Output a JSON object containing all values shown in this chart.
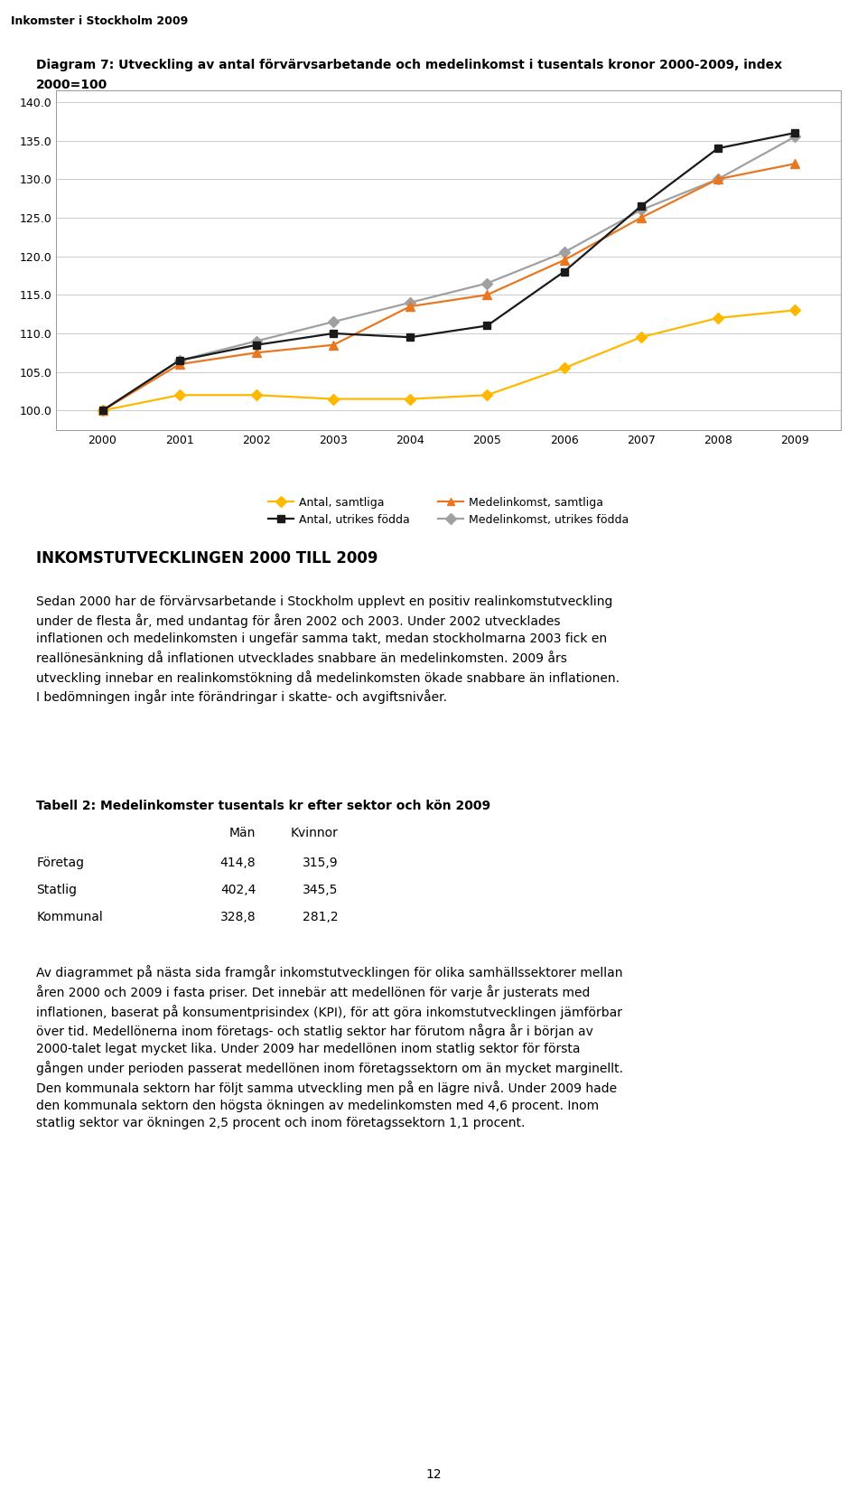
{
  "title_line1": "Diagram 7: Utveckling av antal förvärvsarbetande och medelinkomst i tusentals kronor 2000-2009, index",
  "title_line2": "2000=100",
  "header": "Inkomster i Stockholm 2009",
  "years": [
    2000,
    2001,
    2002,
    2003,
    2004,
    2005,
    2006,
    2007,
    2008,
    2009
  ],
  "antal_samtliga": [
    100.0,
    102.0,
    102.0,
    101.5,
    101.5,
    102.0,
    105.5,
    109.5,
    112.0,
    113.0
  ],
  "antal_utrikes_fodda": [
    100.0,
    106.5,
    108.5,
    110.0,
    109.5,
    111.0,
    118.0,
    126.5,
    134.0,
    136.0
  ],
  "medinkomst_samtliga": [
    100.0,
    106.0,
    107.5,
    108.5,
    113.5,
    115.0,
    119.5,
    125.0,
    130.0,
    132.0
  ],
  "medinkomst_utrikes": [
    100.0,
    106.5,
    109.0,
    111.5,
    114.0,
    116.5,
    120.5,
    126.0,
    130.0,
    135.5
  ],
  "color_antal_samtliga": "#FFB800",
  "color_antal_utrikes": "#1A1A1A",
  "color_medinkomst_samtliga": "#E87722",
  "color_medinkomst_utrikes": "#A0A0A0",
  "ylim_min": 97.5,
  "ylim_max": 141.5,
  "yticks": [
    100.0,
    105.0,
    110.0,
    115.0,
    120.0,
    125.0,
    130.0,
    135.0,
    140.0
  ],
  "bg_color": "#FFFFFF",
  "plot_bg_color": "#FFFFFF",
  "grid_color": "#CCCCCC",
  "header_bg_color": "#F2EBD9",
  "separator_color": "#C8A060",
  "title_fontsize": 10,
  "header_fontsize": 9,
  "axis_fontsize": 9,
  "legend_fontsize": 9,
  "body_fontsize": 10,
  "body_text1": "Sedan 2000 har de förvärvsarbetande i Stockholm upplevt en positiv realinkomstutveckling\nunder de flesta år, med undantag för åren 2002 och 2003. Under 2002 utvecklades\ninflationen och medelinkomsten i ungefär samma takt, medan stockholmarna 2003 fick en\nreallönesänkning då inflationen utvecklades snabbare än medelinkomsten. 2009 års\nutveckling innebar en realinkomstökning då medelinkomsten ökade snabbare än inflationen.\nI bedömningen ingår inte förändringar i skatte- och avgiftsnivåer.",
  "table_title": "Tabell 2: Medelinkomster tusentals kr efter sektor och kön 2009",
  "table_col1": "Män",
  "table_col2": "Kvinnor",
  "table_rows": [
    [
      "Företag",
      "414,8",
      "315,9"
    ],
    [
      "Statlig",
      "402,4",
      "345,5"
    ],
    [
      "Kommunal",
      "328,8",
      "281,2"
    ]
  ],
  "body_text2": "Av diagrammet på nästa sida framgår inkomstutvecklingen för olika samhällssektorer mellan\nåren 2000 och 2009 i fasta priser. Det innebär att medellönen för varje år justerats med\ninflationen, baserat på konsumentprisindex (KPI), för att göra inkomstutvecklingen jämförbar\növer tid. Medellönerna inom företags- och statlig sektor har förutom några år i början av\n2000-talet legat mycket lika. Under 2009 har medellönen inom statlig sektor för första\ngången under perioden passerat medellönen inom företagssektorn om än mycket marginellt.\nDen kommunala sektorn har följt samma utveckling men på en lägre nivå. Under 2009 hade\nden kommunala sektorn den högsta ökningen av medelinkomsten med 4,6 procent. Inom\nstatlig sektor var ökningen 2,5 procent och inom företagssektorn 1,1 procent.",
  "page_number": "12"
}
